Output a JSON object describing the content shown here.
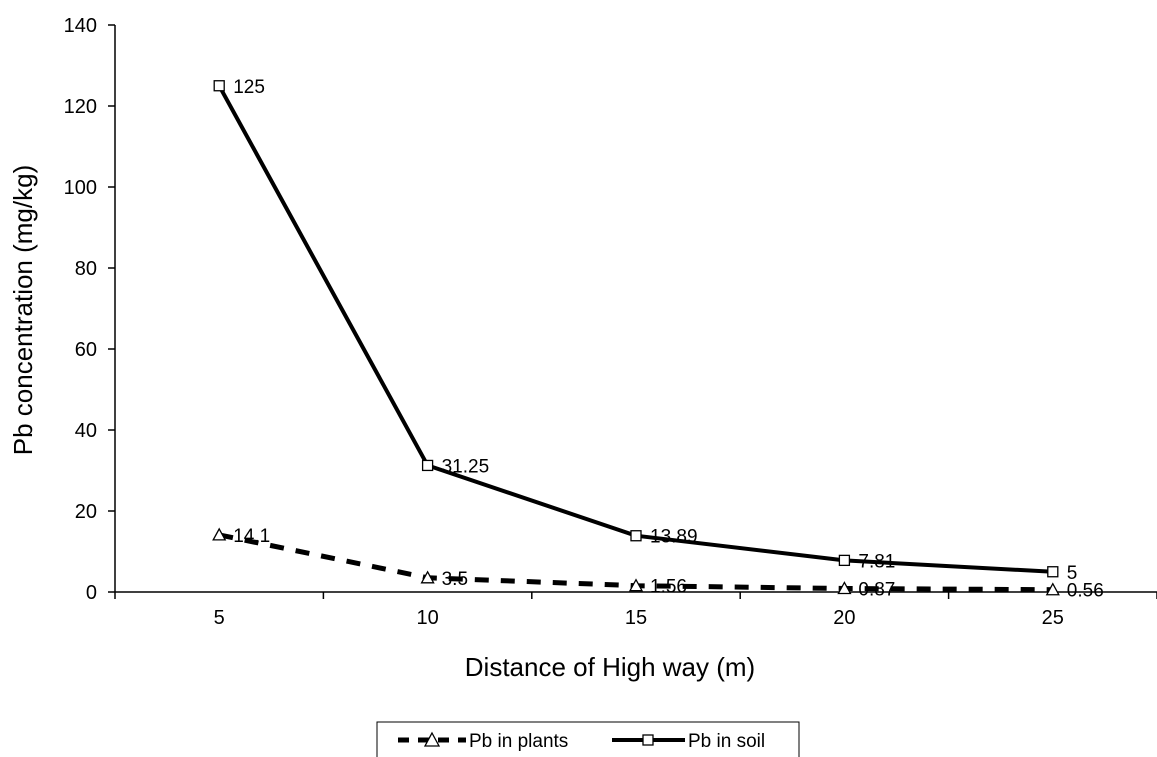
{
  "chart_data": {
    "type": "line",
    "title": "",
    "xlabel": "Distance of High way (m)",
    "ylabel": "Pb concentration (mg/kg)",
    "categories": [
      "5",
      "10",
      "15",
      "20",
      "25"
    ],
    "ylim": [
      0,
      140
    ],
    "yticks": [
      "0",
      "20",
      "40",
      "60",
      "80",
      "100",
      "120",
      "140"
    ],
    "grid": false,
    "legend": "bottom",
    "series": [
      {
        "name": "Pb in plants",
        "values": [
          14.1,
          3.5,
          1.56,
          0.87,
          0.56
        ],
        "labels": [
          "14.1",
          "3.5",
          "1.56",
          "0.87",
          "0.56"
        ],
        "style": "dashed",
        "marker": "triangle",
        "color": "#000000"
      },
      {
        "name": "Pb in soil",
        "values": [
          125,
          31.25,
          13.89,
          7.81,
          5
        ],
        "labels": [
          "125",
          "31.25",
          "13.89",
          "7.81",
          "5"
        ],
        "style": "solid",
        "marker": "square",
        "color": "#000000"
      }
    ]
  }
}
